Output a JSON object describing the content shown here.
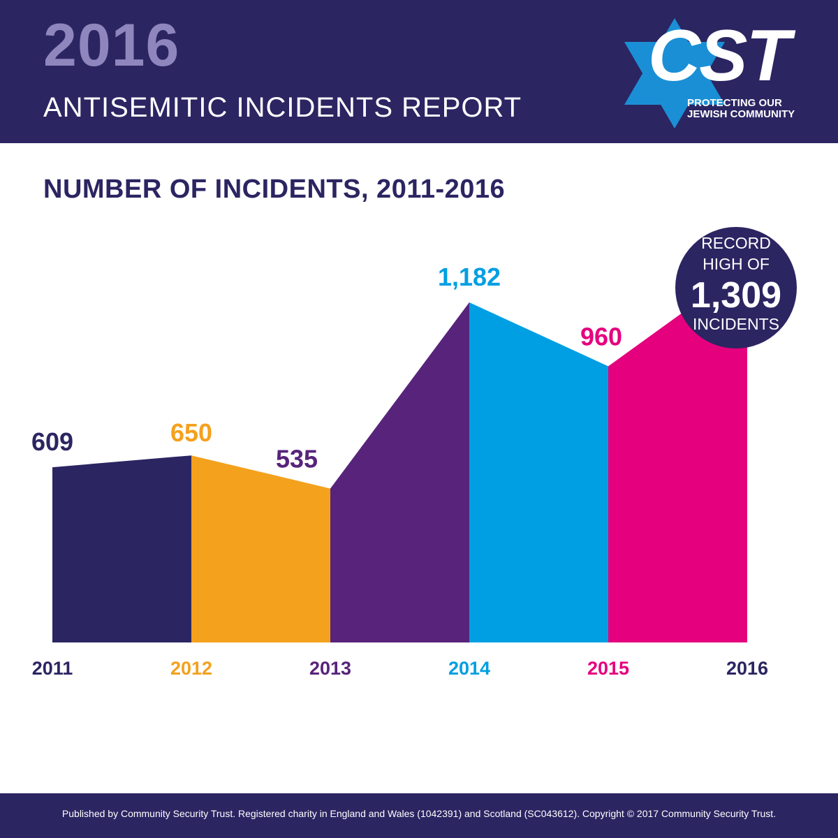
{
  "header": {
    "year": "2016",
    "report_title": "ANTISEMITIC INCIDENTS REPORT"
  },
  "logo": {
    "text": "CST",
    "tagline_line1": "PROTECTING OUR",
    "tagline_line2": "JEWISH COMMUNITY",
    "star_color": "#1a8fd6"
  },
  "chart_title": "NUMBER OF INCIDENTS, 2011-2016",
  "chart_data": {
    "type": "area",
    "title": "NUMBER OF INCIDENTS, 2011-2016",
    "categories": [
      "2011",
      "2012",
      "2013",
      "2014",
      "2015",
      "2016"
    ],
    "values": [
      609,
      650,
      535,
      1182,
      960,
      1309
    ],
    "value_labels": [
      "609",
      "650",
      "535",
      "1,182",
      "960",
      ""
    ],
    "colors": [
      "#2b2562",
      "#f4a11d",
      "#57237b",
      "#009fe3",
      "#e5007e",
      "#2b2562"
    ],
    "segment_colors": [
      "#2b2562",
      "#f4a11d",
      "#57237b",
      "#009fe3",
      "#e5007e"
    ],
    "ylim": [
      0,
      1309
    ],
    "grid": false,
    "legend": "none"
  },
  "record_badge": {
    "line1": "RECORD",
    "line2": "HIGH OF",
    "value": "1,309",
    "line4": "INCIDENTS"
  },
  "footer": {
    "text": "Published by Community Security Trust. Registered charity in England and Wales (1042391) and Scotland (SC043612). Copyright © 2017 Community Security Trust."
  }
}
